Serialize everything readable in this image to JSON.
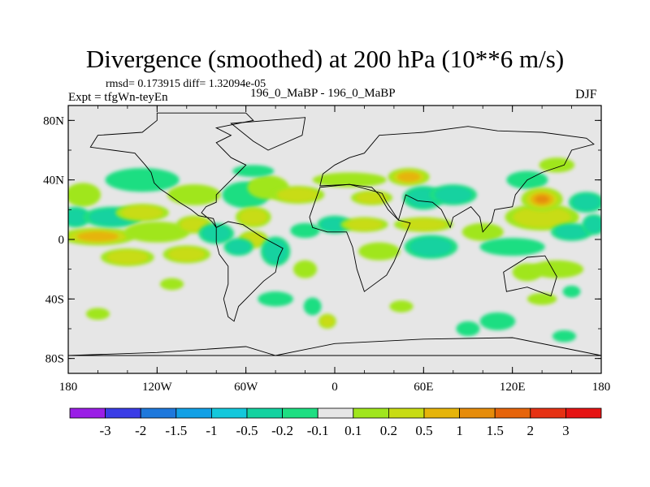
{
  "chart_data": {
    "type": "heatmap",
    "title": "Divergence (smoothed) at 200 hPa (10**6 m/s)",
    "stats": "rmsd= 0.173915 diff= 1.32094e-05",
    "experiment": "Expt = tfgWn-teyEn",
    "case_name": "196_0_MaBP - 196_0_MaBP",
    "season": "DJF",
    "xlim": [
      -180,
      180
    ],
    "ylim": [
      -90,
      90
    ],
    "x_ticks": [
      {
        "value": -180,
        "label": "180"
      },
      {
        "value": -120,
        "label": "120W"
      },
      {
        "value": -60,
        "label": "60W"
      },
      {
        "value": 0,
        "label": "0"
      },
      {
        "value": 60,
        "label": "60E"
      },
      {
        "value": 120,
        "label": "120E"
      },
      {
        "value": 180,
        "label": "180"
      }
    ],
    "y_ticks": [
      {
        "value": 80,
        "label": "80N"
      },
      {
        "value": 40,
        "label": "40N"
      },
      {
        "value": 0,
        "label": "0"
      },
      {
        "value": -40,
        "label": "40S"
      },
      {
        "value": -80,
        "label": "80S"
      }
    ],
    "colorbar": {
      "levels": [
        "-3",
        "-2",
        "-1.5",
        "-1",
        "-0.5",
        "-0.2",
        "-0.1",
        "0.1",
        "0.2",
        "0.5",
        "1",
        "1.5",
        "2",
        "3"
      ],
      "colors": [
        "#9a1ee6",
        "#3a3ce6",
        "#1e78dc",
        "#12a0e6",
        "#14c8dc",
        "#14d2a0",
        "#1ede82",
        "#e6e6e6",
        "#a0e61e",
        "#c8dc14",
        "#e6b40a",
        "#e68c0a",
        "#e6640a",
        "#e63214",
        "#e61414"
      ]
    },
    "background_color": "#e6e6e6",
    "anomalies": [
      {
        "lon": -170,
        "lat": 30,
        "rlon": 12,
        "rlat": 8,
        "value": 0.3
      },
      {
        "lon": -175,
        "lat": 15,
        "rlon": 10,
        "rlat": 7,
        "value": -0.4
      },
      {
        "lon": -160,
        "lat": 2,
        "rlon": 25,
        "rlat": 6,
        "value": 0.8
      },
      {
        "lon": -130,
        "lat": 40,
        "rlon": 25,
        "rlat": 8,
        "value": -0.3
      },
      {
        "lon": -150,
        "lat": 15,
        "rlon": 20,
        "rlat": 7,
        "value": -0.5
      },
      {
        "lon": -130,
        "lat": 18,
        "rlon": 18,
        "rlat": 6,
        "value": 0.4
      },
      {
        "lon": -120,
        "lat": 5,
        "rlon": 22,
        "rlat": 7,
        "value": 0.3
      },
      {
        "lon": -140,
        "lat": -12,
        "rlon": 18,
        "rlat": 6,
        "value": 0.6
      },
      {
        "lon": -100,
        "lat": -10,
        "rlon": 16,
        "rlat": 6,
        "value": 0.4
      },
      {
        "lon": -95,
        "lat": 30,
        "rlon": 18,
        "rlat": 7,
        "value": 0.3
      },
      {
        "lon": -95,
        "lat": 10,
        "rlon": 12,
        "rlat": 6,
        "value": 0.5
      },
      {
        "lon": -110,
        "lat": -30,
        "rlon": 8,
        "rlat": 4,
        "value": 0.2
      },
      {
        "lon": -160,
        "lat": -50,
        "rlon": 8,
        "rlat": 4,
        "value": 0.2
      },
      {
        "lon": -80,
        "lat": 4,
        "rlon": 12,
        "rlat": 7,
        "value": -0.4
      },
      {
        "lon": -60,
        "lat": 30,
        "rlon": 16,
        "rlat": 9,
        "value": -0.3
      },
      {
        "lon": -55,
        "lat": 15,
        "rlon": 12,
        "rlat": 7,
        "value": 0.4
      },
      {
        "lon": -55,
        "lat": 0,
        "rlon": 10,
        "rlat": 6,
        "value": 0.5
      },
      {
        "lon": -65,
        "lat": -5,
        "rlon": 10,
        "rlat": 6,
        "value": -0.5
      },
      {
        "lon": -45,
        "lat": 35,
        "rlon": 14,
        "rlat": 8,
        "value": 0.3
      },
      {
        "lon": -55,
        "lat": 46,
        "rlon": 14,
        "rlat": 4,
        "value": -0.2
      },
      {
        "lon": -40,
        "lat": -8,
        "rlon": 10,
        "rlat": 10,
        "value": -0.5
      },
      {
        "lon": -25,
        "lat": 30,
        "rlon": 18,
        "rlat": 6,
        "value": 0.4
      },
      {
        "lon": -20,
        "lat": 6,
        "rlon": 10,
        "rlat": 5,
        "value": -0.3
      },
      {
        "lon": -20,
        "lat": -20,
        "rlon": 8,
        "rlat": 6,
        "value": 0.3
      },
      {
        "lon": -40,
        "lat": -40,
        "rlon": 12,
        "rlat": 5,
        "value": -0.3
      },
      {
        "lon": -15,
        "lat": -45,
        "rlon": 6,
        "rlat": 6,
        "value": -0.3
      },
      {
        "lon": -5,
        "lat": -55,
        "rlon": 6,
        "rlat": 5,
        "value": 0.6
      },
      {
        "lon": 0,
        "lat": 10,
        "rlon": 12,
        "rlat": 6,
        "value": -0.4
      },
      {
        "lon": 20,
        "lat": 10,
        "rlon": 16,
        "rlat": 5,
        "value": 0.4
      },
      {
        "lon": 10,
        "lat": 40,
        "rlon": 25,
        "rlat": 5,
        "value": 0.3
      },
      {
        "lon": 25,
        "lat": 28,
        "rlon": 14,
        "rlat": 5,
        "value": 0.4
      },
      {
        "lon": 50,
        "lat": 42,
        "rlon": 14,
        "rlat": 6,
        "value": 0.8
      },
      {
        "lon": 60,
        "lat": 28,
        "rlon": 14,
        "rlat": 8,
        "value": -0.5
      },
      {
        "lon": 80,
        "lat": 30,
        "rlon": 16,
        "rlat": 7,
        "value": -0.4
      },
      {
        "lon": 60,
        "lat": 10,
        "rlon": 20,
        "rlat": 5,
        "value": 0.4
      },
      {
        "lon": 30,
        "lat": -8,
        "rlon": 14,
        "rlat": 6,
        "value": 0.3
      },
      {
        "lon": 65,
        "lat": -5,
        "rlon": 18,
        "rlat": 8,
        "value": -0.5
      },
      {
        "lon": 100,
        "lat": 5,
        "rlon": 14,
        "rlat": 6,
        "value": 0.3
      },
      {
        "lon": 120,
        "lat": -5,
        "rlon": 22,
        "rlat": 6,
        "value": -0.3
      },
      {
        "lon": 140,
        "lat": 15,
        "rlon": 25,
        "rlat": 9,
        "value": 0.5
      },
      {
        "lon": 130,
        "lat": 40,
        "rlon": 14,
        "rlat": 6,
        "value": -0.3
      },
      {
        "lon": 140,
        "lat": 27,
        "rlon": 14,
        "rlat": 8,
        "value": 1.2
      },
      {
        "lon": 160,
        "lat": 5,
        "rlon": 14,
        "rlat": 6,
        "value": -0.4
      },
      {
        "lon": 170,
        "lat": 25,
        "rlon": 12,
        "rlat": 7,
        "value": -0.5
      },
      {
        "lon": 175,
        "lat": 10,
        "rlon": 8,
        "rlat": 7,
        "value": -0.5
      },
      {
        "lon": 130,
        "lat": -22,
        "rlon": 10,
        "rlat": 6,
        "value": 0.3
      },
      {
        "lon": 150,
        "lat": -20,
        "rlon": 18,
        "rlat": 6,
        "value": 0.2
      },
      {
        "lon": 160,
        "lat": -35,
        "rlon": 6,
        "rlat": 4,
        "value": -0.2
      },
      {
        "lon": 45,
        "lat": -45,
        "rlon": 8,
        "rlat": 4,
        "value": 0.2
      },
      {
        "lon": 140,
        "lat": -40,
        "rlon": 10,
        "rlat": 4,
        "value": 0.2
      },
      {
        "lon": 110,
        "lat": -55,
        "rlon": 12,
        "rlat": 6,
        "value": -0.3
      },
      {
        "lon": 90,
        "lat": -60,
        "rlon": 8,
        "rlat": 5,
        "value": -0.3
      },
      {
        "lon": 155,
        "lat": -65,
        "rlon": 8,
        "rlat": 4,
        "value": -0.3
      },
      {
        "lon": 150,
        "lat": 50,
        "rlon": 12,
        "rlat": 5,
        "value": 0.2
      }
    ],
    "land_outlines": [
      {
        "name": "north-america",
        "points": [
          [
            -120,
            85
          ],
          [
            -60,
            85
          ],
          [
            -55,
            80
          ],
          [
            -80,
            75
          ],
          [
            -70,
            70
          ],
          [
            -80,
            65
          ],
          [
            -75,
            60
          ],
          [
            -70,
            55
          ],
          [
            -60,
            50
          ],
          [
            -65,
            45
          ],
          [
            -70,
            40
          ],
          [
            -75,
            35
          ],
          [
            -80,
            30
          ],
          [
            -80,
            25
          ],
          [
            -87,
            22
          ],
          [
            -90,
            18
          ],
          [
            -83,
            12
          ],
          [
            -80,
            8
          ],
          [
            -82,
            14
          ],
          [
            -92,
            16
          ],
          [
            -97,
            20
          ],
          [
            -105,
            25
          ],
          [
            -112,
            30
          ],
          [
            -118,
            34
          ],
          [
            -122,
            38
          ],
          [
            -124,
            45
          ],
          [
            -128,
            50
          ],
          [
            -135,
            58
          ],
          [
            -150,
            60
          ],
          [
            -165,
            62
          ],
          [
            -160,
            70
          ],
          [
            -130,
            72
          ],
          [
            -120,
            80
          ]
        ]
      },
      {
        "name": "south-america",
        "points": [
          [
            -80,
            8
          ],
          [
            -72,
            12
          ],
          [
            -62,
            10
          ],
          [
            -50,
            2
          ],
          [
            -35,
            -6
          ],
          [
            -38,
            -12
          ],
          [
            -40,
            -22
          ],
          [
            -48,
            -28
          ],
          [
            -58,
            -38
          ],
          [
            -65,
            -45
          ],
          [
            -68,
            -55
          ],
          [
            -72,
            -52
          ],
          [
            -75,
            -40
          ],
          [
            -72,
            -30
          ],
          [
            -72,
            -18
          ],
          [
            -78,
            -10
          ],
          [
            -80,
            -2
          ]
        ]
      },
      {
        "name": "eurasia",
        "points": [
          [
            -10,
            36
          ],
          [
            -8,
            44
          ],
          [
            0,
            50
          ],
          [
            10,
            55
          ],
          [
            20,
            58
          ],
          [
            30,
            70
          ],
          [
            60,
            72
          ],
          [
            90,
            76
          ],
          [
            110,
            73
          ],
          [
            140,
            72
          ],
          [
            170,
            68
          ],
          [
            175,
            64
          ],
          [
            160,
            60
          ],
          [
            155,
            50
          ],
          [
            140,
            45
          ],
          [
            130,
            40
          ],
          [
            122,
            30
          ],
          [
            120,
            22
          ],
          [
            108,
            20
          ],
          [
            106,
            12
          ],
          [
            100,
            5
          ],
          [
            98,
            15
          ],
          [
            92,
            22
          ],
          [
            80,
            15
          ],
          [
            78,
            8
          ],
          [
            72,
            20
          ],
          [
            66,
            25
          ],
          [
            56,
            26
          ],
          [
            48,
            30
          ],
          [
            43,
            13
          ],
          [
            36,
            20
          ],
          [
            30,
            30
          ],
          [
            25,
            35
          ],
          [
            10,
            37
          ]
        ]
      },
      {
        "name": "africa",
        "points": [
          [
            -17,
            15
          ],
          [
            -10,
            35
          ],
          [
            10,
            37
          ],
          [
            32,
            31
          ],
          [
            35,
            25
          ],
          [
            43,
            13
          ],
          [
            51,
            11
          ],
          [
            40,
            -15
          ],
          [
            35,
            -24
          ],
          [
            20,
            -35
          ],
          [
            15,
            -20
          ],
          [
            12,
            -5
          ],
          [
            8,
            5
          ],
          [
            -5,
            5
          ],
          [
            -15,
            8
          ]
        ]
      },
      {
        "name": "australia",
        "points": [
          [
            114,
            -22
          ],
          [
            130,
            -12
          ],
          [
            142,
            -11
          ],
          [
            150,
            -25
          ],
          [
            146,
            -38
          ],
          [
            130,
            -32
          ],
          [
            116,
            -35
          ]
        ]
      },
      {
        "name": "greenland",
        "points": [
          [
            -70,
            78
          ],
          [
            -20,
            82
          ],
          [
            -22,
            70
          ],
          [
            -45,
            60
          ],
          [
            -55,
            66
          ]
        ]
      },
      {
        "name": "antarctica",
        "points": [
          [
            -180,
            -78
          ],
          [
            -120,
            -76
          ],
          [
            -60,
            -72
          ],
          [
            -40,
            -78
          ],
          [
            0,
            -70
          ],
          [
            60,
            -67
          ],
          [
            120,
            -66
          ],
          [
            180,
            -78
          ]
        ]
      }
    ]
  }
}
